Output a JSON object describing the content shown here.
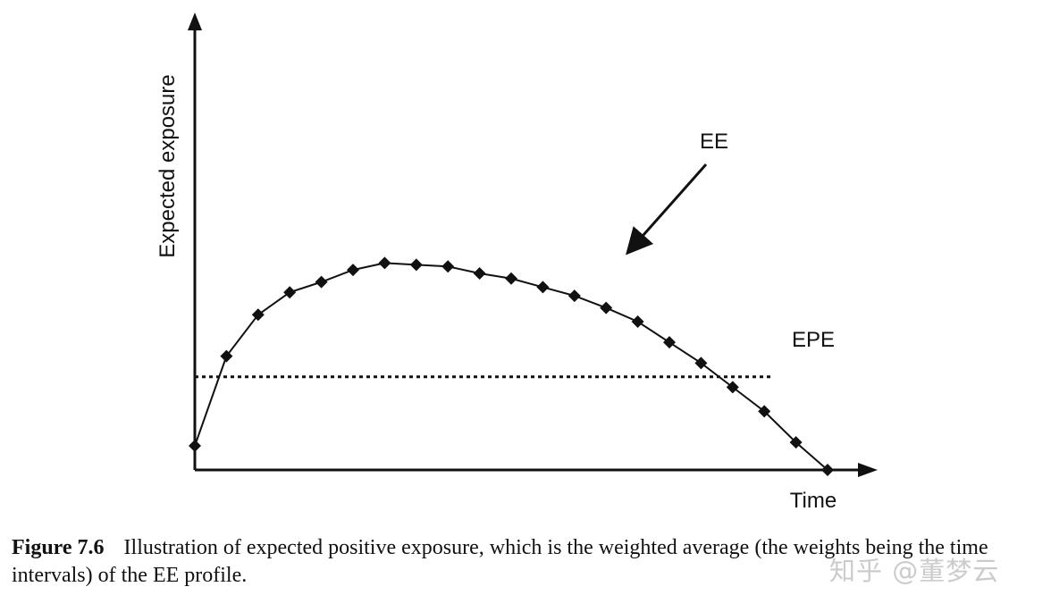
{
  "chart_data": {
    "type": "line",
    "title": "",
    "xlabel": "Time",
    "ylabel": "Expected exposure",
    "xlim": [
      0,
      20
    ],
    "ylim": [
      0,
      100
    ],
    "series": [
      {
        "name": "EE",
        "marker": "diamond",
        "color": "#111111",
        "x": [
          0,
          1,
          2,
          3,
          4,
          5,
          6,
          7,
          8,
          9,
          10,
          11,
          12,
          13,
          14,
          15,
          16,
          17,
          18,
          19,
          20
        ],
        "values": [
          7,
          33,
          45,
          51.5,
          54.5,
          58,
          60,
          59.5,
          59,
          57,
          55.5,
          53,
          50.5,
          47,
          43,
          37,
          31,
          24,
          17,
          8,
          0
        ]
      },
      {
        "name": "EPE",
        "style": "dotted",
        "color": "#111111",
        "x": [
          0,
          18.2
        ],
        "values": [
          27,
          27
        ]
      }
    ],
    "annotations": [
      {
        "text": "EE",
        "target_series": "EE"
      },
      {
        "text": "EPE",
        "target_series": "EPE"
      }
    ]
  },
  "caption": {
    "label": "Figure 7.6",
    "text": "Illustration of expected positive exposure, which is the weighted average (the weights being the time intervals) of the EE profile."
  },
  "watermark": "知乎 @董梦云"
}
